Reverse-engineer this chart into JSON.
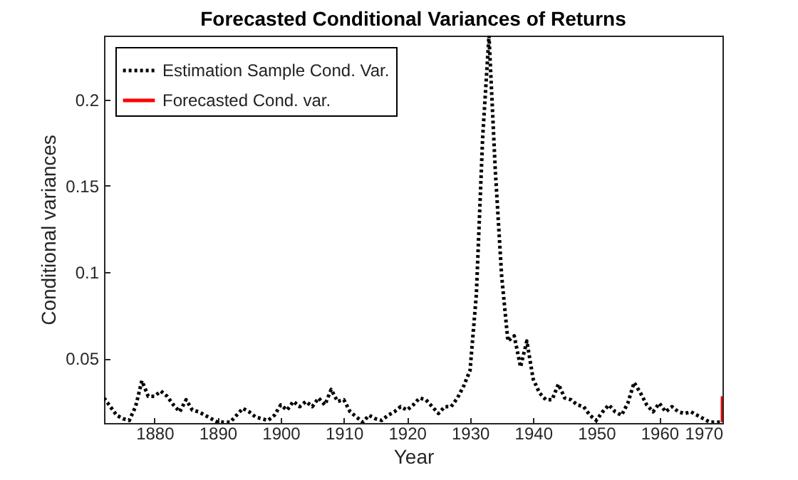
{
  "chart_data": {
    "type": "line",
    "title": "Forecasted Conditional Variances of Returns",
    "xlabel": "Year",
    "ylabel": "Conditional variances",
    "xlim": [
      1872,
      1970
    ],
    "xticks": [
      1880,
      1890,
      1900,
      1910,
      1920,
      1930,
      1940,
      1950,
      1960,
      1970
    ],
    "ylim": [
      0.0125,
      0.237
    ],
    "yticks": [
      0.05,
      {
        "value": 0.1,
        "label": "0.1"
      },
      0.15,
      {
        "value": 0.2,
        "label": "0.2"
      }
    ],
    "legend": "top left",
    "marker": "none",
    "grid": false,
    "series": [
      {
        "name": "Estimation Sample Cond. Var.",
        "color": "#000000",
        "line_style": "dotted",
        "x": [
          1872,
          1873,
          1874,
          1875,
          1876,
          1877,
          1878,
          1879,
          1880,
          1881,
          1882,
          1883,
          1884,
          1885,
          1886,
          1887,
          1888,
          1889,
          1890,
          1891,
          1892,
          1893,
          1894,
          1895,
          1896,
          1897,
          1898,
          1899,
          1900,
          1901,
          1902,
          1903,
          1904,
          1905,
          1906,
          1907,
          1908,
          1909,
          1910,
          1911,
          1912,
          1913,
          1914,
          1915,
          1916,
          1917,
          1918,
          1919,
          1920,
          1921,
          1922,
          1923,
          1924,
          1925,
          1926,
          1927,
          1928,
          1929,
          1930,
          1931,
          1932,
          1933,
          1934,
          1935,
          1936,
          1937,
          1938,
          1939,
          1940,
          1941,
          1942,
          1943,
          1944,
          1945,
          1946,
          1947,
          1948,
          1949,
          1950,
          1951,
          1952,
          1953,
          1954,
          1955,
          1956,
          1957,
          1958,
          1959,
          1960,
          1961,
          1962,
          1963,
          1964,
          1965,
          1966,
          1967,
          1968,
          1969,
          1970
        ],
        "values": [
          0.027,
          0.022,
          0.017,
          0.015,
          0.014,
          0.022,
          0.037,
          0.028,
          0.028,
          0.031,
          0.028,
          0.023,
          0.019,
          0.026,
          0.02,
          0.019,
          0.017,
          0.015,
          0.013,
          0.013,
          0.013,
          0.017,
          0.021,
          0.019,
          0.016,
          0.015,
          0.014,
          0.017,
          0.023,
          0.02,
          0.025,
          0.022,
          0.025,
          0.022,
          0.027,
          0.023,
          0.032,
          0.025,
          0.026,
          0.019,
          0.016,
          0.013,
          0.017,
          0.015,
          0.014,
          0.017,
          0.019,
          0.022,
          0.02,
          0.023,
          0.027,
          0.026,
          0.022,
          0.018,
          0.022,
          0.022,
          0.027,
          0.034,
          0.043,
          0.087,
          0.178,
          0.237,
          0.159,
          0.098,
          0.06,
          0.063,
          0.045,
          0.06,
          0.038,
          0.03,
          0.026,
          0.026,
          0.035,
          0.027,
          0.026,
          0.023,
          0.022,
          0.017,
          0.014,
          0.019,
          0.023,
          0.019,
          0.017,
          0.024,
          0.036,
          0.03,
          0.023,
          0.019,
          0.024,
          0.019,
          0.022,
          0.019,
          0.018,
          0.019,
          0.017,
          0.015,
          0.013,
          0.013,
          0.013
        ]
      },
      {
        "name": "Forecasted Cond. var.",
        "color": "#ff0000",
        "line_style": "solid",
        "x": [
          1970,
          1970
        ],
        "values": [
          0.013,
          0.028
        ]
      }
    ]
  }
}
